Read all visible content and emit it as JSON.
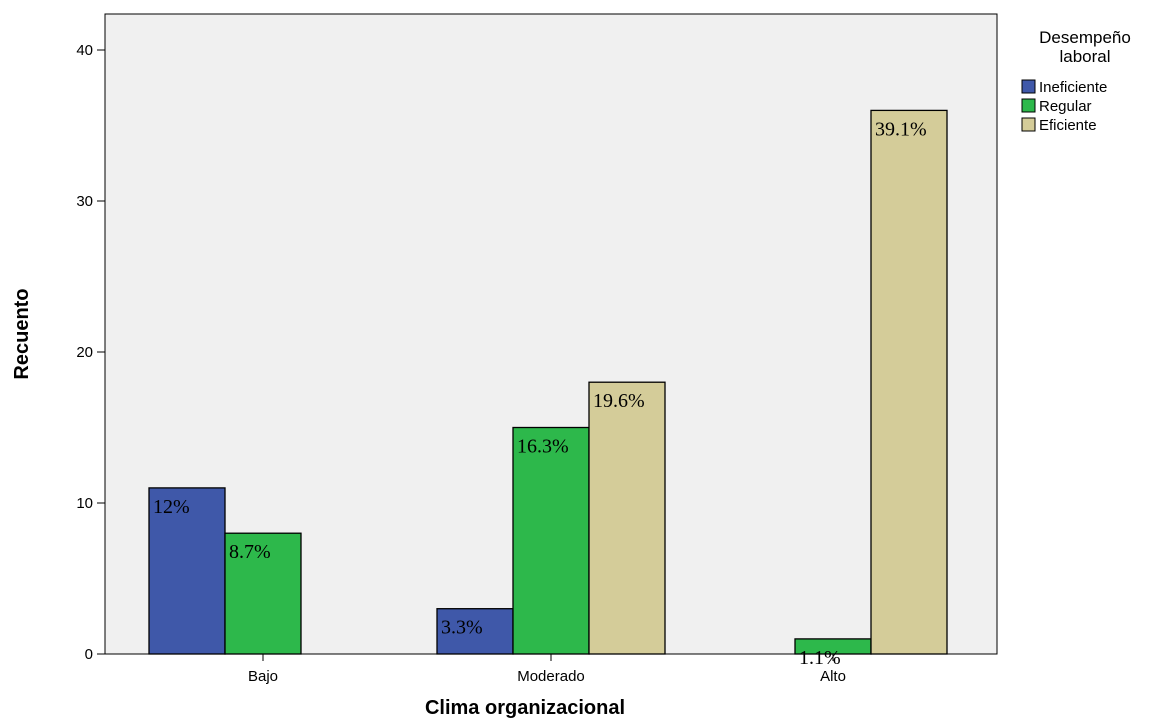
{
  "chart_data": {
    "type": "bar",
    "title": "",
    "xlabel": "Clima organizacional",
    "ylabel": "Recuento",
    "ylim": [
      0,
      43
    ],
    "yticks": [
      0,
      10,
      20,
      30,
      40
    ],
    "grid": false,
    "legend_position": "right",
    "legend_title": [
      "Desempeño",
      "laboral"
    ],
    "categories": [
      "Bajo",
      "Moderado",
      "Alto"
    ],
    "series": [
      {
        "name": "Ineficiente",
        "color": "#3f58a9",
        "values": [
          11,
          3,
          0
        ],
        "labels": [
          "12%",
          "3.3%",
          ""
        ]
      },
      {
        "name": "Regular",
        "color": "#2db84b",
        "values": [
          8,
          15,
          1
        ],
        "labels": [
          "8.7%",
          "16.3%",
          "1.1%"
        ]
      },
      {
        "name": "Eficiente",
        "color": "#d4cc99",
        "values": [
          0,
          18,
          36
        ],
        "labels": [
          "",
          "19.6%",
          "39.1%"
        ]
      }
    ],
    "plot_background": "#f0f0f0"
  }
}
